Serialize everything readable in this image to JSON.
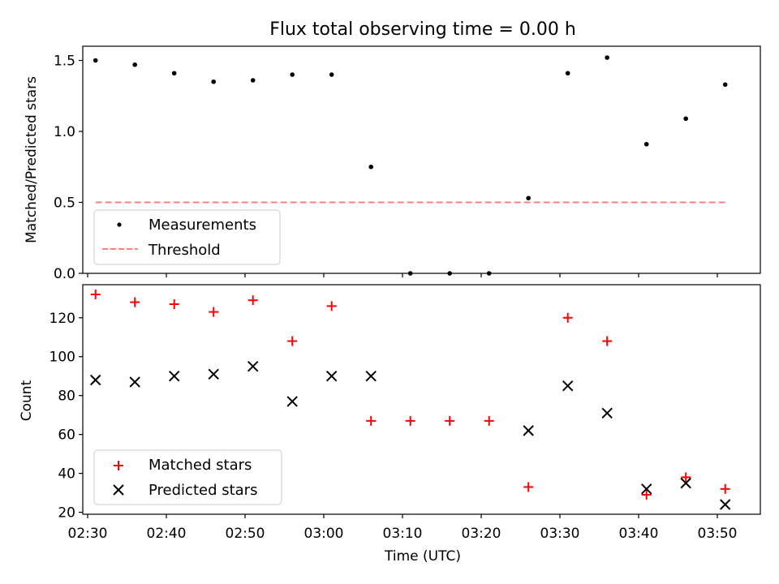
{
  "chart_data": [
    {
      "type": "scatter",
      "title": "Flux total observing time = 0.00 h",
      "xlabel": "",
      "ylabel": "Matched/Predicted stars",
      "ylim": [
        0,
        1.6
      ],
      "yticks": [
        0.0,
        0.5,
        1.0,
        1.5
      ],
      "ytick_labels": [
        "0.0",
        "0.5",
        "1.0",
        "1.5"
      ],
      "x": [
        "02:31",
        "02:36",
        "02:41",
        "02:46",
        "02:51",
        "02:56",
        "03:01",
        "03:06",
        "03:11",
        "03:16",
        "03:21",
        "03:26",
        "03:31",
        "03:36",
        "03:41",
        "03:46",
        "03:51"
      ],
      "series": [
        {
          "name": "Measurements",
          "marker": "dot",
          "color": "#000000",
          "values": [
            1.5,
            1.47,
            1.41,
            1.35,
            1.36,
            1.4,
            1.4,
            0.75,
            0.0,
            0.0,
            0.0,
            0.53,
            1.41,
            1.52,
            0.91,
            1.09,
            1.33
          ]
        },
        {
          "name": "Threshold",
          "marker": "dashed-line",
          "color": "#ff7f7f",
          "x": [
            "02:31",
            "03:51"
          ],
          "values": [
            0.5,
            0.5
          ]
        }
      ],
      "legend": {
        "placement": "lower-left",
        "entries": [
          "Measurements",
          "Threshold"
        ]
      }
    },
    {
      "type": "scatter",
      "title": "",
      "xlabel": "Time (UTC)",
      "ylabel": "Count",
      "ylim": [
        19,
        137
      ],
      "yticks": [
        20,
        40,
        60,
        80,
        100,
        120
      ],
      "ytick_labels": [
        "20",
        "40",
        "60",
        "80",
        "100",
        "120"
      ],
      "xticks": [
        "02:30",
        "02:40",
        "02:50",
        "03:00",
        "03:10",
        "03:20",
        "03:30",
        "03:40",
        "03:50"
      ],
      "x": [
        "02:31",
        "02:36",
        "02:41",
        "02:46",
        "02:51",
        "02:56",
        "03:01",
        "03:06",
        "03:11",
        "03:16",
        "03:21",
        "03:26",
        "03:31",
        "03:36",
        "03:41",
        "03:46",
        "03:51"
      ],
      "series": [
        {
          "name": "Matched stars",
          "marker": "plus",
          "color": "#ff0000",
          "values": [
            132,
            128,
            127,
            123,
            129,
            108,
            126,
            67,
            67,
            67,
            67,
            33,
            120,
            108,
            29,
            38,
            32
          ]
        },
        {
          "name": "Predicted stars",
          "marker": "x",
          "color": "#000000",
          "x": [
            "02:31",
            "02:36",
            "02:41",
            "02:46",
            "02:51",
            "02:56",
            "03:01",
            "03:06",
            "03:26",
            "03:31",
            "03:36",
            "03:41",
            "03:46",
            "03:51"
          ],
          "values": [
            88,
            87,
            90,
            91,
            95,
            77,
            90,
            90,
            62,
            85,
            71,
            32,
            35,
            24
          ]
        }
      ],
      "legend": {
        "placement": "lower-left",
        "entries": [
          "Matched stars",
          "Predicted stars"
        ]
      }
    }
  ]
}
